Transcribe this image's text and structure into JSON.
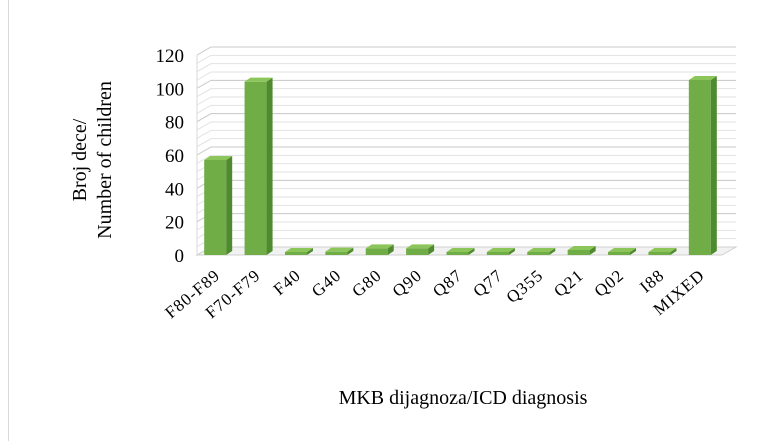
{
  "chart_data": {
    "type": "bar",
    "style": "3d-clustered-column",
    "categories": [
      "F80-F89",
      "F70-F79",
      "F40",
      "G40",
      "G80",
      "Q90",
      "Q87",
      "Q77",
      "Q355",
      "Q21",
      "Q02",
      "I88",
      "MIXED"
    ],
    "values": [
      57,
      104,
      1,
      2,
      4,
      4,
      1,
      0,
      0,
      3,
      0,
      0,
      105
    ],
    "ylim": [
      0,
      120
    ],
    "yticks": [
      0,
      20,
      40,
      60,
      80,
      100,
      120
    ],
    "ylabel_line1": "Broj dece/",
    "ylabel_line2": "Number of children",
    "xlabel": "MKB dijagnoza/ICD diagnosis",
    "grid": true,
    "legend": "none",
    "bar_color": "#70ad47",
    "bar_side_color": "#4f8a2f",
    "bar_top_color": "#8cc65a"
  }
}
